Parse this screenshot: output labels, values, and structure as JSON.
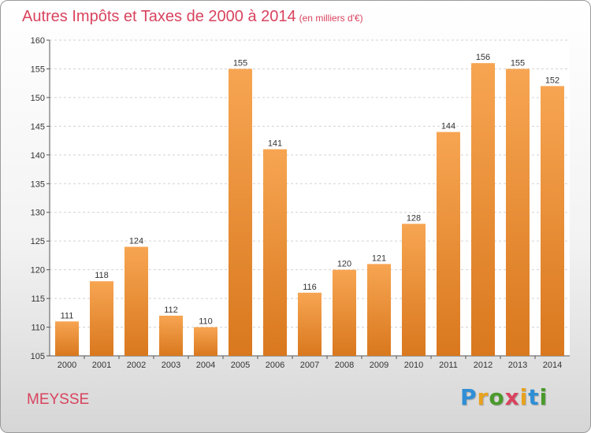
{
  "header": {
    "title": "Autres Impôts et Taxes de 2000 à 2014",
    "subtitle": "(en milliers d'€)"
  },
  "footer": {
    "commune": "MEYSSE",
    "logo": {
      "letters": [
        "P",
        "r",
        "o",
        "x",
        "i",
        "t",
        "i"
      ],
      "colors": [
        "#2f8fd6",
        "#e8a21e",
        "#4a9a2b",
        "#d9435e",
        "#e8a21e",
        "#2f8fd6",
        "#4a9a2b"
      ]
    }
  },
  "chart_data": {
    "type": "bar",
    "categories": [
      "2000",
      "2001",
      "2002",
      "2003",
      "2004",
      "2005",
      "2006",
      "2007",
      "2008",
      "2009",
      "2010",
      "2011",
      "2012",
      "2013",
      "2014"
    ],
    "values": [
      111,
      118,
      124,
      112,
      110,
      155,
      141,
      116,
      120,
      121,
      128,
      144,
      156,
      155,
      152
    ],
    "title": "Autres Impôts et Taxes de 2000 à 2014",
    "ylim": [
      105,
      160
    ],
    "yticks": [
      105,
      110,
      115,
      120,
      125,
      130,
      135,
      140,
      145,
      150,
      155,
      160
    ],
    "grid": true,
    "bar_color_top": "#f7a552",
    "bar_color_bottom": "#d9781e"
  }
}
